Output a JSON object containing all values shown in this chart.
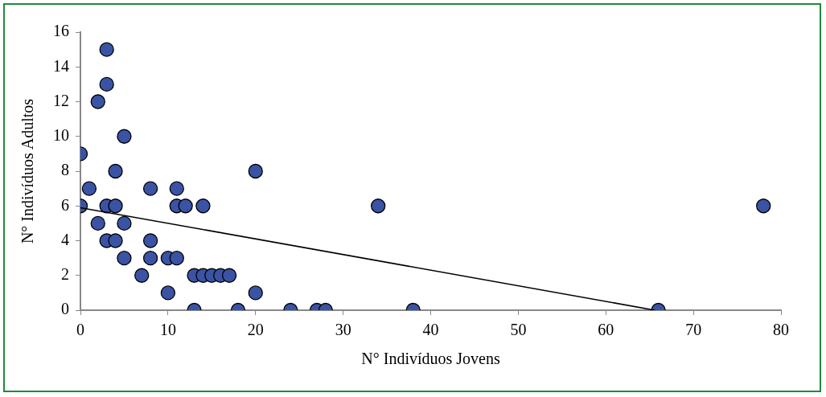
{
  "chart_data": {
    "type": "scatter",
    "xlabel": "N° Indivíduos Jovens",
    "ylabel": "N° Indivíduos Adultos",
    "xlim": [
      0,
      80
    ],
    "xticks": [
      0,
      10,
      20,
      30,
      40,
      50,
      60,
      70,
      80
    ],
    "ylim": [
      0,
      16
    ],
    "yticks": [
      0,
      2,
      4,
      6,
      8,
      10,
      12,
      14,
      16
    ],
    "grid": false,
    "legend": false,
    "marker": "circle",
    "series": [
      {
        "color": "#3a53a4",
        "x": [
          0,
          0,
          1,
          2,
          2,
          3,
          3,
          3,
          3,
          4,
          4,
          4,
          5,
          5,
          5,
          7,
          8,
          8,
          8,
          10,
          10,
          11,
          11,
          11,
          12,
          13,
          13,
          14,
          14,
          15,
          16,
          17,
          18,
          20,
          20,
          24,
          27,
          28,
          34,
          38,
          66,
          78
        ],
        "values": [
          9,
          6,
          7,
          12,
          5,
          15,
          13,
          6,
          4,
          8,
          6,
          4,
          10,
          5,
          3,
          2,
          7,
          4,
          3,
          3,
          1,
          7,
          6,
          3,
          6,
          2,
          0,
          6,
          2,
          2,
          2,
          2,
          0,
          8,
          1,
          0,
          0,
          0,
          6,
          0,
          0,
          6
        ]
      },
      {
        "type": "line",
        "color": "#000000",
        "marker": "none",
        "line_style": "solid",
        "x": [
          0,
          65.6
        ],
        "values": [
          5.9,
          0
        ]
      }
    ]
  }
}
